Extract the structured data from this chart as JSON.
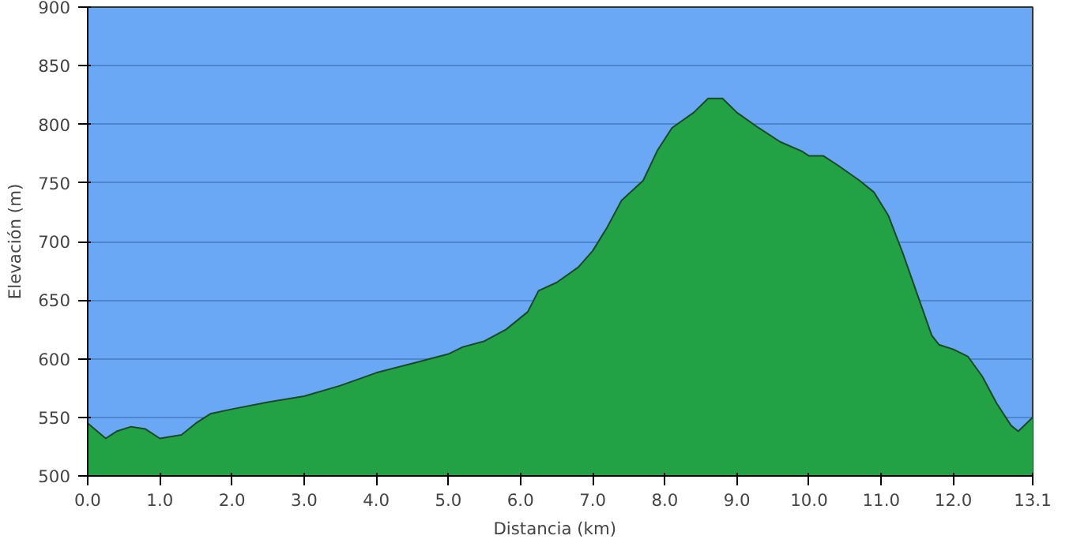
{
  "chart_data": {
    "type": "area",
    "xlabel": "Distancia   (km)",
    "ylabel": "Elevación (m)",
    "xlim": [
      0,
      13.1
    ],
    "ylim": [
      500,
      900
    ],
    "xticks": [
      {
        "value": 0,
        "label": "0.0"
      },
      {
        "value": 1,
        "label": "1.0"
      },
      {
        "value": 2,
        "label": "2.0"
      },
      {
        "value": 3,
        "label": "3.0"
      },
      {
        "value": 4,
        "label": "4.0"
      },
      {
        "value": 5,
        "label": "5.0"
      },
      {
        "value": 6,
        "label": "6.0"
      },
      {
        "value": 7,
        "label": "7.0"
      },
      {
        "value": 8,
        "label": "8.0"
      },
      {
        "value": 9,
        "label": "9.0"
      },
      {
        "value": 10,
        "label": "10.0"
      },
      {
        "value": 11,
        "label": "11.0"
      },
      {
        "value": 12,
        "label": "12.0"
      },
      {
        "value": 13.1,
        "label": "13.1"
      }
    ],
    "yticks": [
      500,
      550,
      600,
      650,
      700,
      750,
      800,
      850,
      900
    ],
    "grid": "y",
    "series": [
      {
        "color": "#22a244",
        "x": [
          0,
          0.25,
          0.4,
          0.6,
          0.8,
          1.0,
          1.3,
          1.5,
          1.7,
          2.0,
          2.5,
          3.0,
          3.5,
          4.0,
          4.5,
          5.0,
          5.2,
          5.5,
          5.8,
          6.1,
          6.25,
          6.5,
          6.8,
          7.0,
          7.2,
          7.4,
          7.7,
          7.9,
          8.1,
          8.4,
          8.6,
          8.8,
          9.0,
          9.3,
          9.6,
          9.9,
          10.0,
          10.2,
          10.4,
          10.7,
          10.9,
          11.1,
          11.3,
          11.5,
          11.7,
          11.8,
          12.0,
          12.2,
          12.4,
          12.6,
          12.8,
          12.9,
          13.1
        ],
        "values": [
          545,
          532,
          538,
          542,
          540,
          532,
          535,
          545,
          553,
          557,
          563,
          568,
          577,
          588,
          596,
          604,
          610,
          615,
          625,
          640,
          658,
          665,
          678,
          692,
          712,
          735,
          752,
          778,
          797,
          810,
          822,
          822,
          810,
          797,
          785,
          777,
          773,
          773,
          765,
          752,
          742,
          722,
          690,
          655,
          620,
          612,
          608,
          602,
          585,
          562,
          543,
          538,
          550
        ]
      }
    ]
  }
}
